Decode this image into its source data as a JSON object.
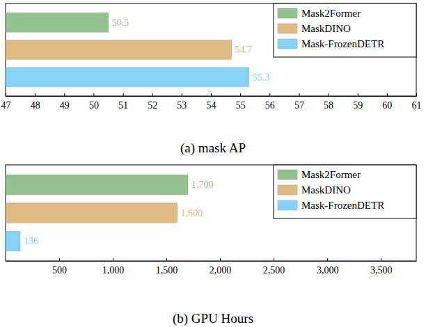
{
  "chart_data": [
    {
      "type": "bar",
      "orientation": "horizontal",
      "title": "(a) mask AP",
      "categories": [
        "Mask2Former",
        "MaskDINO",
        "Mask-FrozenDETR"
      ],
      "values": [
        50.5,
        54.7,
        55.3
      ],
      "colors": [
        "#93c28f",
        "#e0b985",
        "#87d2f7"
      ],
      "xlim": [
        47,
        61
      ],
      "xticks": [
        47,
        48,
        49,
        50,
        51,
        52,
        53,
        54,
        55,
        56,
        57,
        58,
        59,
        60,
        61
      ],
      "data_labels": true,
      "legend": "top-right",
      "tick_labels": "x"
    },
    {
      "type": "bar",
      "orientation": "horizontal",
      "title": "(b) GPU Hours",
      "categories": [
        "Mask2Former",
        "MaskDINO",
        "Mask-FrozenDETR"
      ],
      "values": [
        1700,
        1600,
        136
      ],
      "value_labels": [
        "1,700",
        "1,600",
        "136"
      ],
      "colors": [
        "#93c28f",
        "#e0b985",
        "#87d2f7"
      ],
      "xlim": [
        0,
        3830
      ],
      "xticks": [
        500,
        {
          "value": 1000,
          "label": "1,000"
        },
        {
          "value": 1500,
          "label": "1,500"
        },
        {
          "value": 2000,
          "label": "2,000"
        },
        {
          "value": 2500,
          "label": "2,500"
        },
        {
          "value": 3000,
          "label": "3,000"
        },
        {
          "value": 3500,
          "label": "3,500"
        }
      ],
      "data_labels": true,
      "legend": "top-right",
      "tick_labels": "x"
    }
  ]
}
